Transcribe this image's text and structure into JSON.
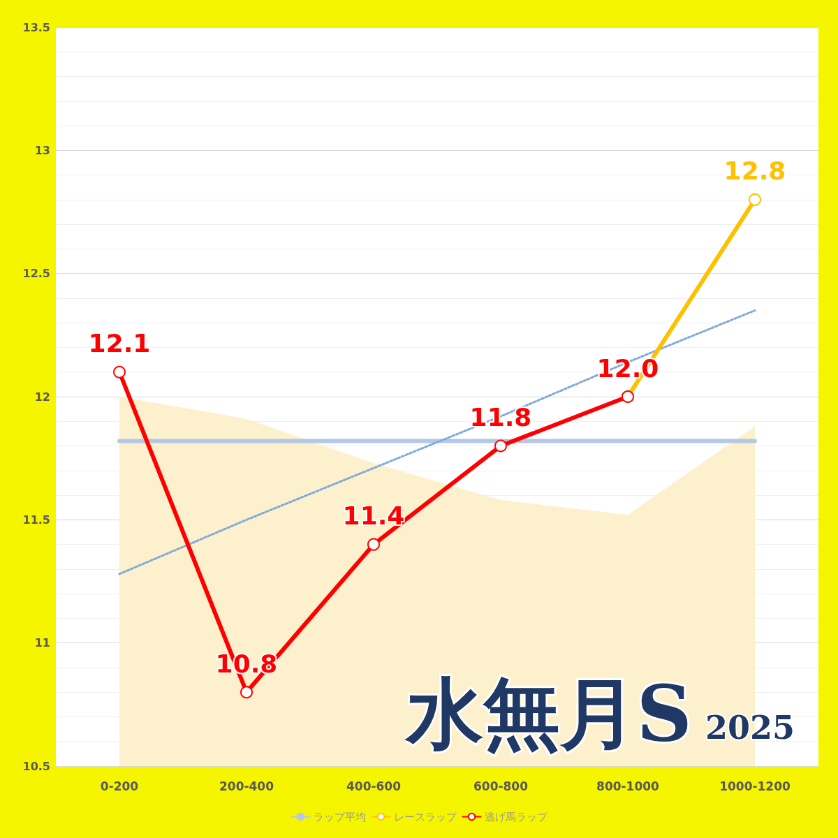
{
  "chart_data": {
    "type": "line",
    "title": "水無月S",
    "subtitle": "2025",
    "categories": [
      "0-200",
      "200-400",
      "400-600",
      "600-800",
      "800-1000",
      "1000-1200"
    ],
    "series": [
      {
        "type": "area",
        "color": "#fdf0cc",
        "values": [
          12.0,
          11.91,
          11.73,
          11.58,
          11.52,
          11.88
        ],
        "marker": "none"
      },
      {
        "name": "ラップ平均",
        "color": "#b4c7e7",
        "values": [
          11.82,
          11.82,
          11.82,
          11.82,
          11.82,
          11.82
        ],
        "marker": "none",
        "line_style": "solid"
      },
      {
        "color": "#7fa9d8",
        "values": [
          11.28,
          11.5,
          11.71,
          11.92,
          12.14,
          12.35
        ],
        "marker": "none",
        "line_style": "dotted"
      },
      {
        "name": "レースラップ",
        "color": "#ffc000",
        "values": [
          null,
          null,
          null,
          null,
          12.0,
          12.8
        ],
        "marker": "circle",
        "line_style": "solid",
        "value_labels": [
          null,
          null,
          null,
          null,
          null,
          "12.8"
        ]
      },
      {
        "name": "逃げ馬ラップ",
        "color": "#ff0000",
        "values": [
          12.1,
          10.8,
          11.4,
          11.8,
          12.0,
          null
        ],
        "marker": "circle",
        "line_style": "solid",
        "value_labels": [
          "12.1",
          "10.8",
          "11.4",
          "11.8",
          "12.0",
          null
        ]
      }
    ],
    "ylim": [
      10.5,
      13.5
    ],
    "yticks": [
      10.5,
      11,
      11.5,
      12,
      12.5,
      13,
      13.5
    ],
    "grid": "y",
    "legend": "bottom"
  }
}
